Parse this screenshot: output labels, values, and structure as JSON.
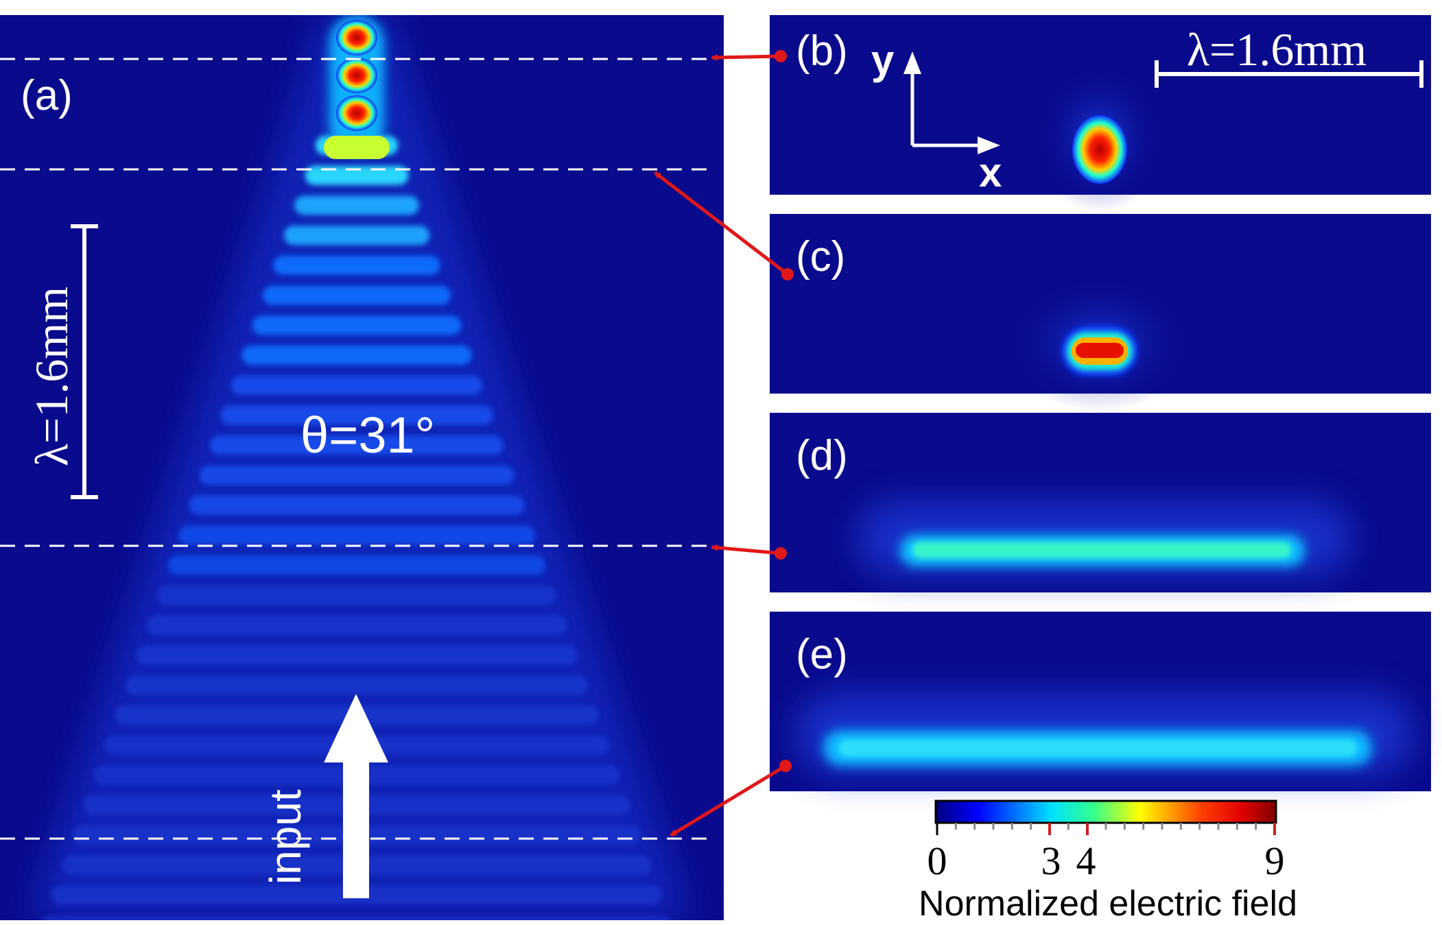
{
  "panels": {
    "a": {
      "label": "(a)",
      "angle_label": "θ=31°",
      "scale_label": "λ=1.6mm",
      "input_label": "input"
    },
    "b": {
      "label": "(b)",
      "scale_label": "λ=1.6mm",
      "axis_y": "y",
      "axis_x": "x"
    },
    "c": {
      "label": "(c)"
    },
    "d": {
      "label": "(d)"
    },
    "e": {
      "label": "(e)"
    }
  },
  "colorbar": {
    "title": "Normalized electric field",
    "ticks": [
      "0",
      "3",
      "4",
      "9"
    ],
    "range": [
      0,
      9
    ],
    "colormap": "jet"
  },
  "colors": {
    "background": "#0a0a8c",
    "arrow": "#e01818",
    "dashed_line": "#ffffff"
  }
}
